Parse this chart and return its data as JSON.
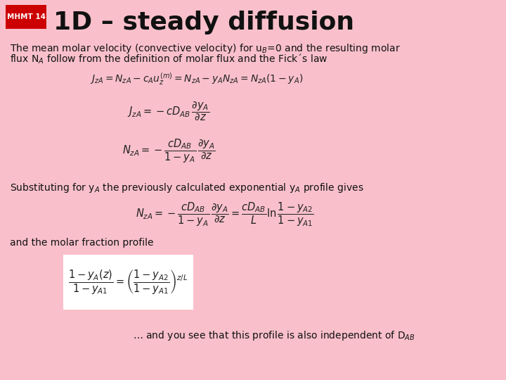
{
  "bg_color": "#F9C0CB",
  "title_box_color": "#CC0000",
  "title_box_text": "MHMT 14",
  "title_box_text_color": "#FFFFFF",
  "title_text": "1D – steady diffusion",
  "title_text_color": "#111111",
  "body_text_color": "#111111",
  "eq_text_color": "#222222"
}
